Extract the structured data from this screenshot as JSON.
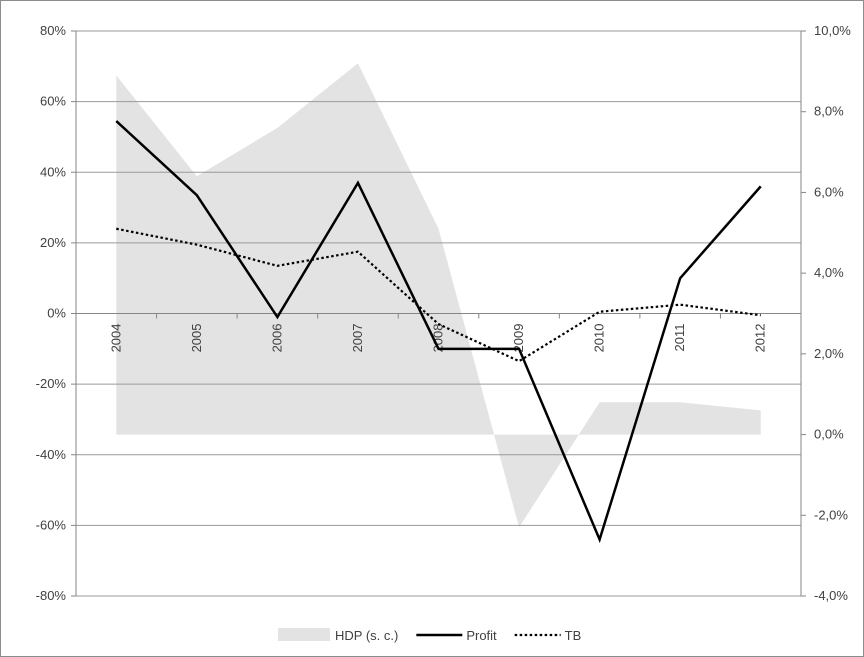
{
  "chart_data": {
    "type": "line",
    "categories": [
      "2004",
      "2005",
      "2006",
      "2007",
      "2008",
      "2009",
      "2010",
      "2011",
      "2012"
    ],
    "y_left": {
      "ylim": [
        -80,
        80
      ],
      "ticks": [
        80,
        60,
        40,
        20,
        0,
        -20,
        -40,
        -60,
        -80
      ],
      "tick_labels": [
        "80%",
        "60%",
        "40%",
        "20%",
        "0%",
        "-20%",
        "-40%",
        "-60%",
        "-80%"
      ]
    },
    "y_right": {
      "ylim": [
        -4.0,
        10.0
      ],
      "ticks": [
        10,
        8,
        6,
        4,
        2,
        0,
        -2,
        -4
      ],
      "tick_labels": [
        "10,0%",
        "8,0%",
        "6,0%",
        "4,0%",
        "2,0%",
        "0,0%",
        "-2,0%",
        "-4,0%"
      ]
    },
    "series": [
      {
        "name": "HDP (s. c.)",
        "kind": "area",
        "axis": "right",
        "values": [
          8.9,
          6.4,
          7.6,
          9.2,
          5.1,
          -2.3,
          0.8,
          0.8,
          0.6
        ],
        "color": "#e3e3e3"
      },
      {
        "name": "Profit",
        "kind": "line",
        "axis": "left",
        "values": [
          54.5,
          33.5,
          -1.0,
          37.0,
          -10.0,
          -10.0,
          -64.0,
          10.0,
          36.0
        ],
        "color": "#000000"
      },
      {
        "name": "TB",
        "kind": "line-dotted",
        "axis": "left",
        "values": [
          24.0,
          19.5,
          13.5,
          17.5,
          -3.0,
          -13.5,
          0.5,
          2.5,
          -0.5
        ],
        "color": "#000000"
      }
    ],
    "grid": true,
    "legend_position": "bottom-center"
  }
}
